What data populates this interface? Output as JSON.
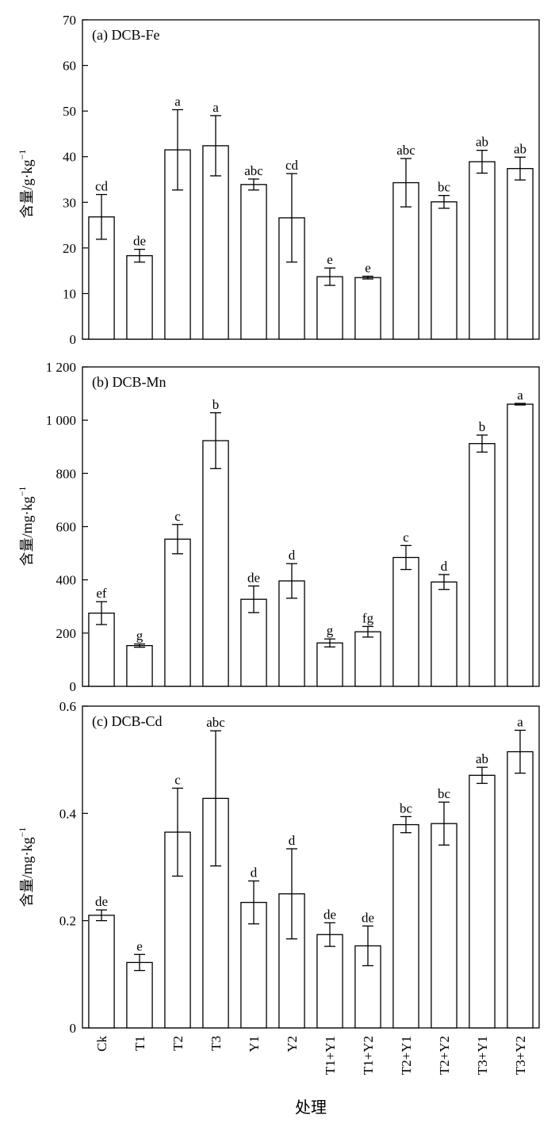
{
  "chart_data": [
    {
      "type": "bar",
      "title": "(a) DCB-Fe",
      "ylabel": "含量/g·kg",
      "ylabel_sup": "−1",
      "xlabel": "",
      "ylim": [
        0,
        70
      ],
      "yticks": [
        0,
        10,
        20,
        30,
        40,
        50,
        60,
        70
      ],
      "ytick_labels": [
        "0",
        "10",
        "20",
        "30",
        "40",
        "50",
        "60",
        "70"
      ],
      "categories": [
        "Ck",
        "T1",
        "T2",
        "T3",
        "Y1",
        "Y2",
        "T1+Y1",
        "T1+Y2",
        "T2+Y1",
        "T2+Y2",
        "T3+Y1",
        "T3+Y2"
      ],
      "values": [
        26.8,
        18.3,
        41.5,
        42.4,
        33.9,
        26.6,
        13.7,
        13.5,
        34.3,
        30.1,
        38.9,
        37.4
      ],
      "errors": [
        4.9,
        1.4,
        8.8,
        6.6,
        1.2,
        9.7,
        1.9,
        0.3,
        5.3,
        1.4,
        2.5,
        2.5
      ],
      "letters": [
        "cd",
        "de",
        "a",
        "a",
        "abc",
        "cd",
        "e",
        "e",
        "abc",
        "bc",
        "ab",
        "ab"
      ]
    },
    {
      "type": "bar",
      "title": "(b) DCB-Mn",
      "ylabel": "含量/mg·kg",
      "ylabel_sup": "−1",
      "xlabel": "",
      "ylim": [
        0,
        1200
      ],
      "yticks": [
        0,
        200,
        400,
        600,
        800,
        1000,
        1200
      ],
      "ytick_labels": [
        "0",
        "200",
        "400",
        "600",
        "800",
        "1 000",
        "1 200"
      ],
      "categories": [
        "Ck",
        "T1",
        "T2",
        "T3",
        "Y1",
        "Y2",
        "T1+Y1",
        "T1+Y2",
        "T2+Y1",
        "T2+Y2",
        "T3+Y1",
        "T3+Y2"
      ],
      "values": [
        275,
        153,
        553,
        923,
        327,
        396,
        163,
        205,
        484,
        392,
        912,
        1060
      ],
      "errors": [
        43,
        6,
        55,
        105,
        50,
        65,
        15,
        20,
        45,
        28,
        32,
        3
      ],
      "letters": [
        "ef",
        "g",
        "c",
        "b",
        "de",
        "d",
        "g",
        "fg",
        "c",
        "d",
        "b",
        "a"
      ]
    },
    {
      "type": "bar",
      "title": "(c) DCB-Cd",
      "ylabel": "含量/mg·kg",
      "ylabel_sup": "−1",
      "xlabel": "处理",
      "ylim": [
        0,
        0.6
      ],
      "yticks": [
        0,
        0.2,
        0.4,
        0.6
      ],
      "ytick_labels": [
        "0",
        "0.2",
        "0.4",
        "0.6"
      ],
      "categories": [
        "Ck",
        "T1",
        "T2",
        "T3",
        "Y1",
        "Y2",
        "T1+Y1",
        "T1+Y2",
        "T2+Y1",
        "T2+Y2",
        "T3+Y1",
        "T3+Y2"
      ],
      "values": [
        0.21,
        0.122,
        0.365,
        0.428,
        0.234,
        0.25,
        0.174,
        0.153,
        0.379,
        0.381,
        0.471,
        0.515
      ],
      "errors": [
        0.01,
        0.015,
        0.082,
        0.126,
        0.04,
        0.084,
        0.022,
        0.037,
        0.015,
        0.04,
        0.015,
        0.04
      ],
      "letters": [
        "de",
        "e",
        "c",
        "abc",
        "d",
        "d",
        "de",
        "de",
        "bc",
        "bc",
        "ab",
        "a"
      ]
    }
  ]
}
